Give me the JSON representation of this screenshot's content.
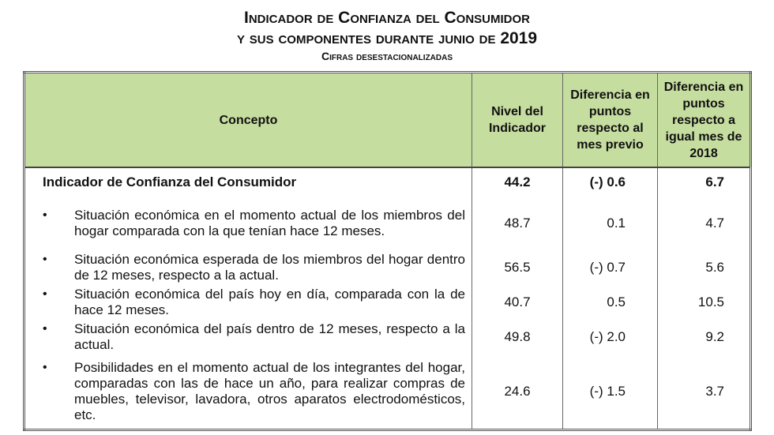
{
  "header": {
    "title": "Indicador de Confianza del Consumidor",
    "subtitle": "y sus componentes durante junio de 2019",
    "note": "Cifras desestacionalizadas"
  },
  "table": {
    "columns": [
      "Concepto",
      "Nivel del Indicador",
      "Diferencia en puntos respecto al mes previo",
      "Diferencia en puntos respecto a igual mes de 2018"
    ],
    "rows": [
      [
        "Indicador de Confianza del Consumidor",
        "44.2",
        "(-) 0.6",
        "6.7"
      ],
      [
        "Situación económica en el momento actual de los miembros del hogar comparada con la que tenían hace 12 meses.",
        "48.7",
        "0.1",
        "4.7"
      ],
      [
        "Situación económica esperada de los miembros del hogar dentro de 12 meses, respecto a la actual.",
        "56.5",
        "(-) 0.7",
        "5.6"
      ],
      [
        "Situación económica del país hoy en día, comparada con la de hace 12 meses.",
        "40.7",
        "0.5",
        "10.5"
      ],
      [
        "Situación económica del país dentro de 12 meses, respecto a la actual.",
        "49.8",
        "(-) 2.0",
        "9.2"
      ],
      [
        "Posibilidades en el momento actual de los integrantes del hogar, comparadas con las de hace un año, para realizar compras de muebles, televisor, lavadora, otros aparatos electrodomésticos, etc.",
        "24.6",
        "(-) 1.5",
        "3.7"
      ]
    ]
  }
}
